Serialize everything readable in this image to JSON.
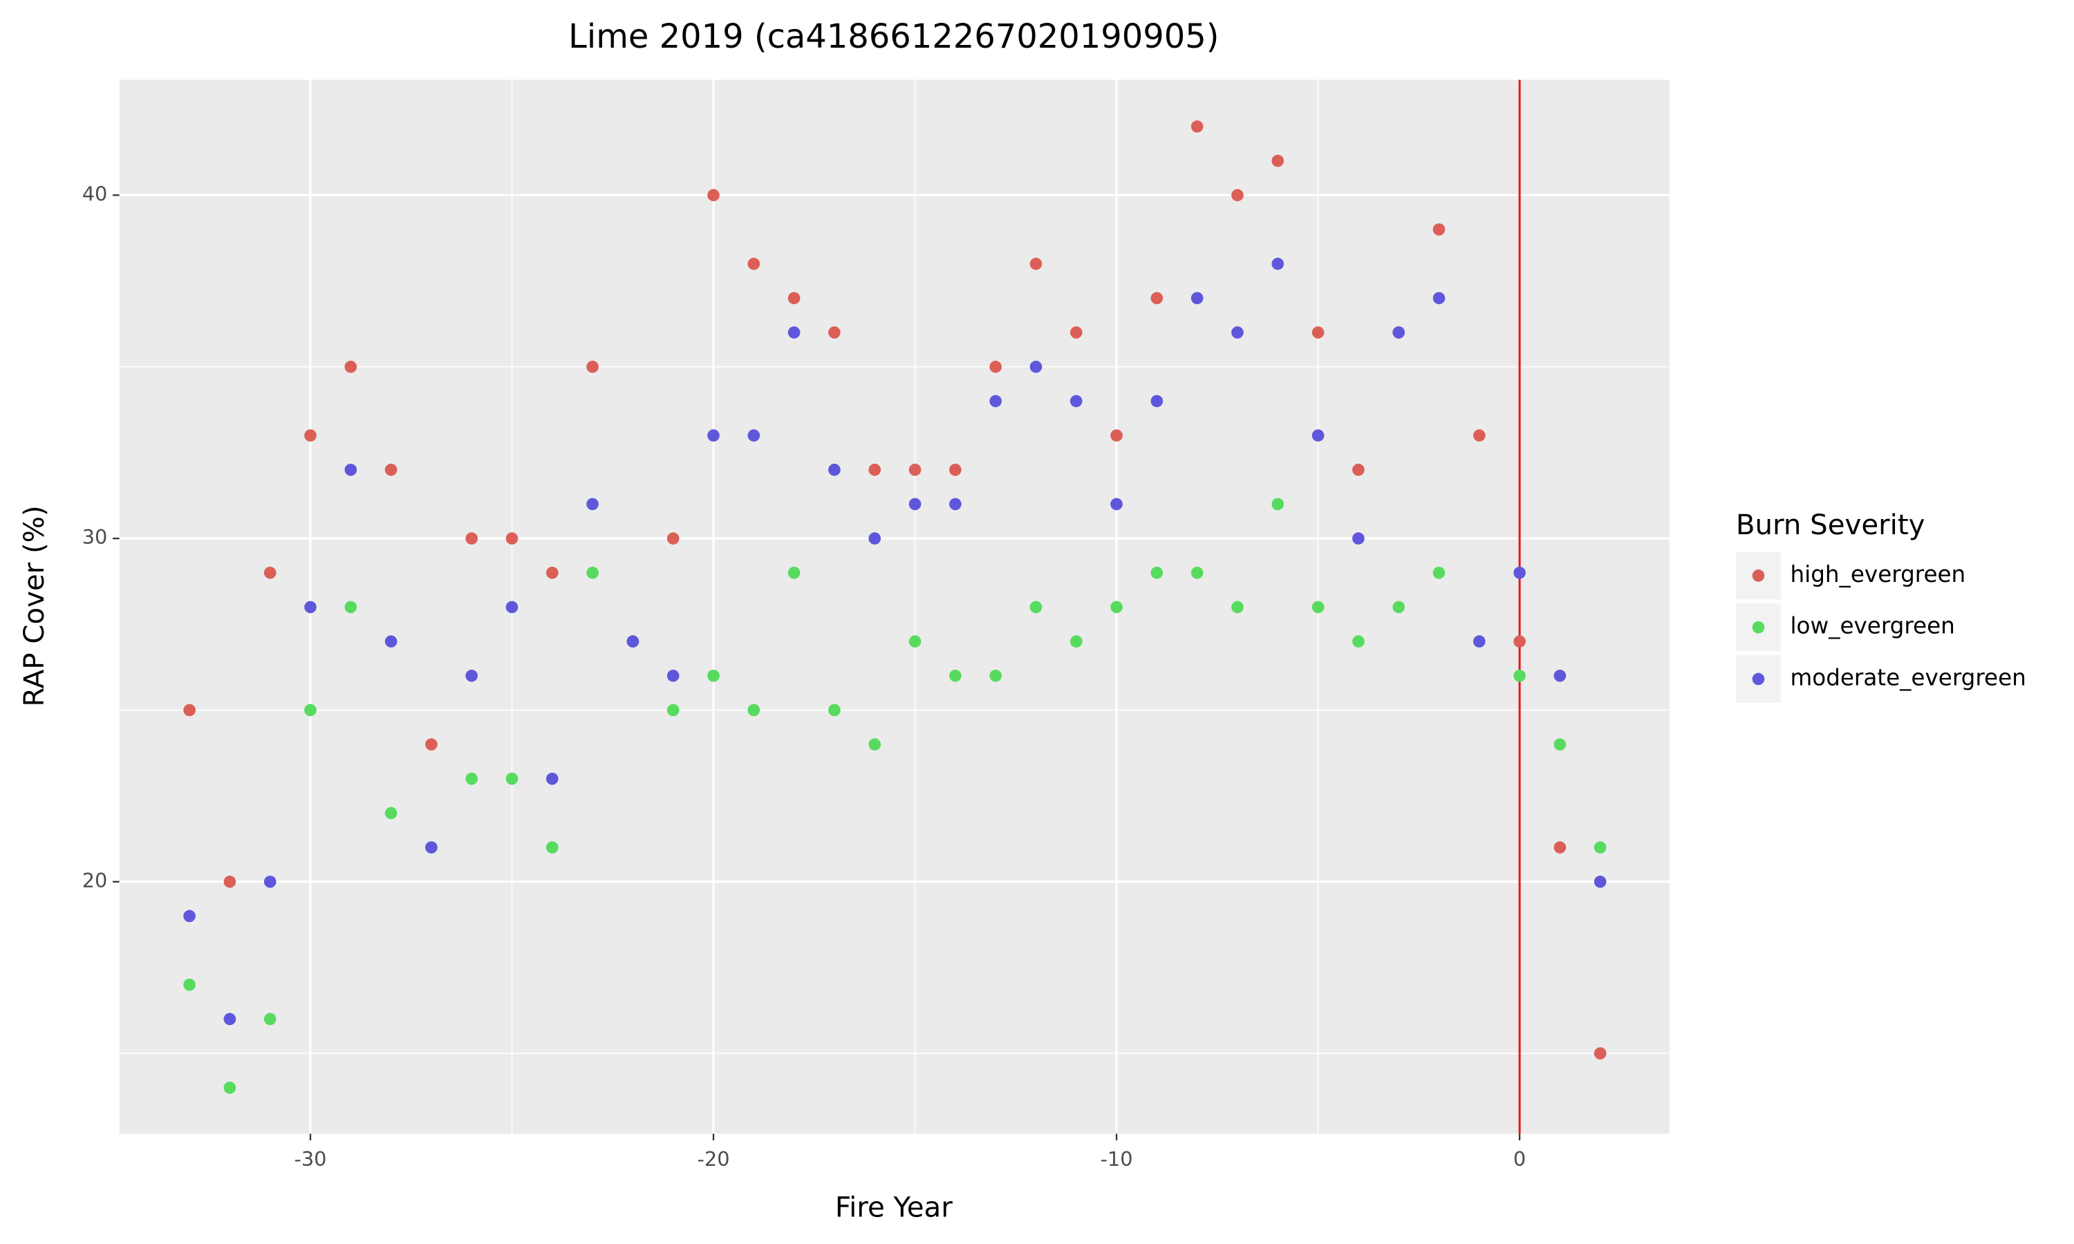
{
  "chart_data": {
    "type": "scatter",
    "title": "Lime 2019 (ca4186612267020190905)",
    "x_label": "Fire Year",
    "y_label": "RAP Cover (%)",
    "legend_title": "Burn Severity",
    "legend_position": "right",
    "x": [
      -33,
      -32,
      -31,
      -30,
      -29,
      -28,
      -27,
      -26,
      -25,
      -24,
      -23,
      -22,
      -21,
      -20,
      -19,
      -18,
      -17,
      -16,
      -15,
      -14,
      -13,
      -12,
      -11,
      -10,
      -9,
      -8,
      -7,
      -6,
      -5,
      -4,
      -3,
      -2,
      -1,
      0,
      1,
      2
    ],
    "series": [
      {
        "name": "high_evergreen",
        "color": "#db5f57",
        "values": [
          25,
          20,
          29,
          33,
          35,
          32,
          24,
          30,
          30,
          29,
          35,
          27,
          30,
          40,
          38,
          37,
          36,
          32,
          32,
          32,
          35,
          38,
          36,
          33,
          37,
          42,
          40,
          41,
          36,
          32,
          36,
          39,
          33,
          27,
          21,
          15
        ]
      },
      {
        "name": "low_evergreen",
        "color": "#57db5f",
        "values": [
          17,
          14,
          16,
          25,
          28,
          22,
          21,
          23,
          23,
          21,
          29,
          27,
          25,
          26,
          25,
          29,
          25,
          24,
          27,
          26,
          26,
          28,
          27,
          28,
          29,
          29,
          28,
          31,
          28,
          27,
          28,
          29,
          27,
          26,
          24,
          21
        ]
      },
      {
        "name": "moderate_evergreen",
        "color": "#5f57db",
        "values": [
          19,
          16,
          20,
          28,
          32,
          27,
          21,
          26,
          28,
          23,
          31,
          27,
          26,
          33,
          33,
          36,
          32,
          30,
          31,
          31,
          34,
          35,
          34,
          31,
          34,
          37,
          36,
          38,
          33,
          30,
          36,
          37,
          27,
          29,
          26,
          20
        ]
      }
    ],
    "vline": {
      "x": 0,
      "color": "#e41a1c"
    },
    "xlim": [
      -34.74,
      3.72
    ],
    "ylim": [
      12.66,
      43.36
    ],
    "xticks": [
      -30,
      -20,
      -10,
      0
    ],
    "yticks": [
      20,
      30,
      40
    ],
    "minor_xticks": [
      -25,
      -15,
      -5
    ],
    "minor_yticks": [
      15,
      25,
      35
    ],
    "grid": true
  }
}
